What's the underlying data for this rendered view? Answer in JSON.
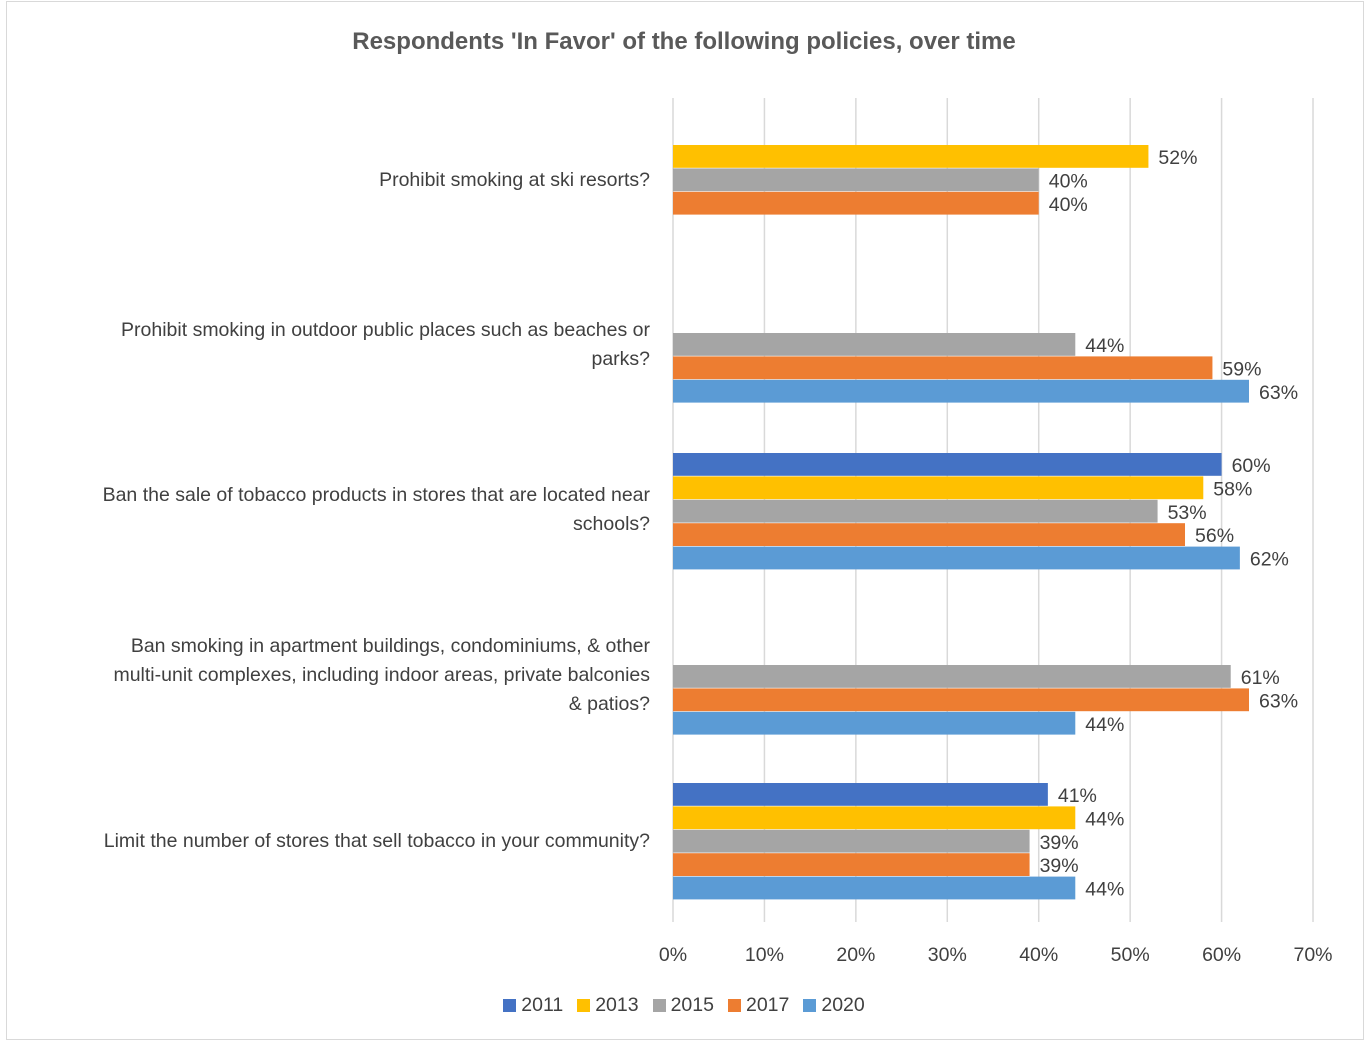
{
  "chart_data": {
    "type": "bar",
    "orientation": "horizontal",
    "title": "Respondents 'In Favor' of the following policies, over time",
    "xlabel": "",
    "ylabel": "",
    "xlim": [
      0,
      70
    ],
    "x_ticks": [
      "0%",
      "10%",
      "20%",
      "30%",
      "40%",
      "50%",
      "60%",
      "70%"
    ],
    "grid": "vertical",
    "legend_position": "bottom",
    "categories": [
      "Prohibit smoking at ski resorts?",
      "Prohibit smoking in outdoor public places such as beaches or parks?",
      "Ban the sale of tobacco products in stores that are located near schools?",
      "Ban smoking in apartment buildings, condominiums, & other multi-unit complexes, including indoor areas, private balconies & patios?",
      "Limit the number of stores that sell tobacco in your community?"
    ],
    "category_lines": [
      [
        "Prohibit smoking at ski resorts?"
      ],
      [
        "Prohibit smoking in outdoor public places such as beaches or",
        "parks?"
      ],
      [
        "Ban the sale of tobacco products in stores that are located near",
        "schools?"
      ],
      [
        "Ban smoking in apartment buildings, condominiums, & other",
        "multi-unit complexes, including indoor areas, private balconies",
        "& patios?"
      ],
      [
        "Limit the number of stores that sell tobacco in your community?"
      ]
    ],
    "series": [
      {
        "name": "2011",
        "color": "#4472c4",
        "values": [
          null,
          null,
          60,
          null,
          41
        ],
        "labels": [
          "",
          "",
          "60%",
          "",
          "41%"
        ]
      },
      {
        "name": "2013",
        "color": "#ffc000",
        "values": [
          52,
          null,
          58,
          null,
          44
        ],
        "labels": [
          "52%",
          "",
          "58%",
          "",
          "44%"
        ]
      },
      {
        "name": "2015",
        "color": "#a5a5a5",
        "values": [
          40,
          44,
          53,
          61,
          39
        ],
        "labels": [
          "40%",
          "44%",
          "53%",
          "61%",
          "39%"
        ]
      },
      {
        "name": "2017",
        "color": "#ed7d31",
        "values": [
          40,
          59,
          56,
          63,
          39
        ],
        "labels": [
          "40%",
          "59%",
          "56%",
          "63%",
          "39%"
        ]
      },
      {
        "name": "2020",
        "color": "#5b9bd5",
        "values": [
          null,
          63,
          62,
          44,
          44
        ],
        "labels": [
          "",
          "63%",
          "62%",
          "44%",
          "44%"
        ]
      }
    ]
  }
}
